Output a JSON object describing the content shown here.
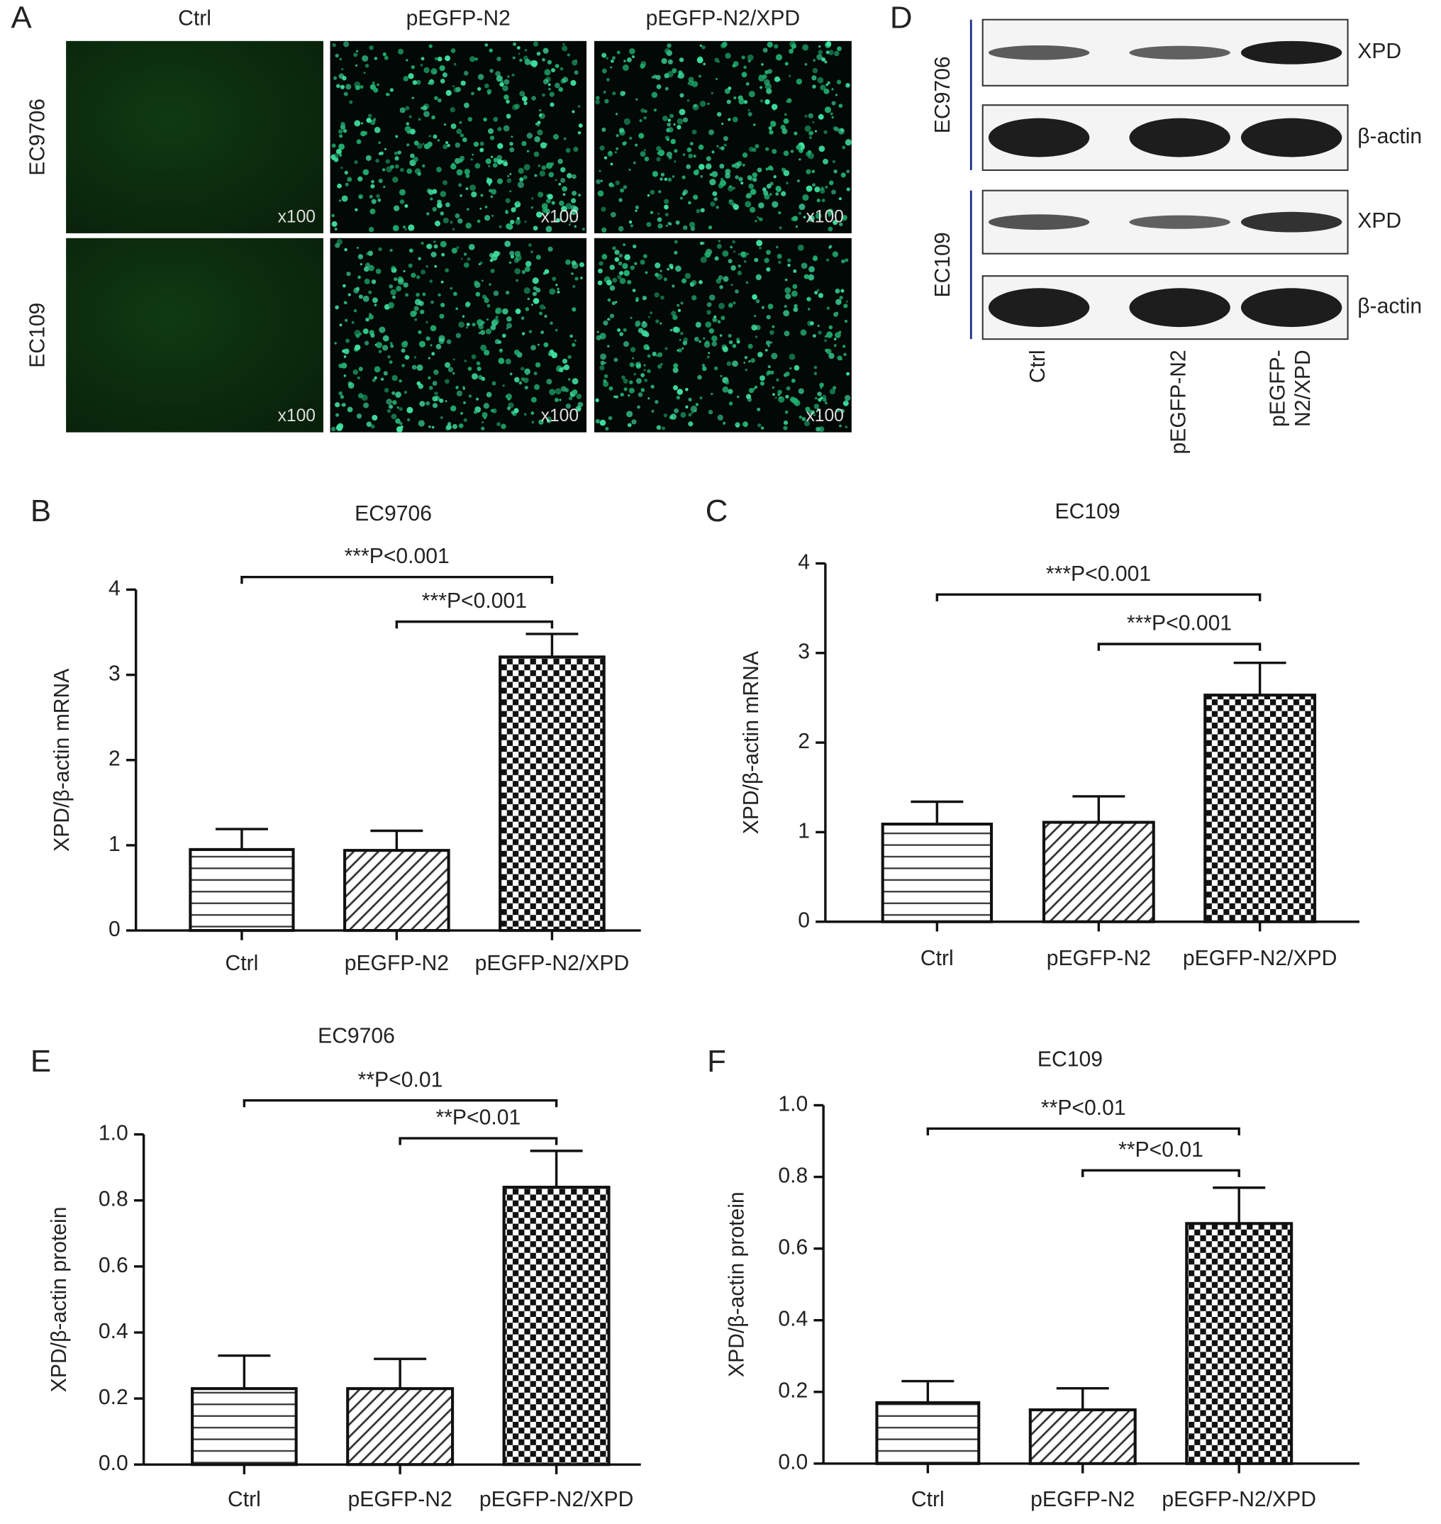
{
  "panel_labels": [
    "A",
    "B",
    "C",
    "D",
    "E",
    "F"
  ],
  "microscopy": {
    "columns": [
      "Ctrl",
      "pEGFP-N2",
      "pEGFP-N2/XPD"
    ],
    "rows": [
      "EC9706",
      "EC109"
    ],
    "magnification": "x100"
  },
  "western_blot": {
    "groups": [
      "EC9706",
      "EC109"
    ],
    "bands": [
      "XPD",
      "β-actin"
    ],
    "lanes": [
      [
        "Ctrl"
      ],
      [
        "pEGFP-N2"
      ],
      [
        "pEGFP-",
        "N2/XPD"
      ]
    ]
  },
  "chart_data": [
    {
      "type": "bar",
      "title": "EC9706",
      "ylabel": "XPD/β-actin mRNA",
      "categories": [
        "Ctrl",
        "pEGFP-N2",
        "pEGFP-N2/XPD"
      ],
      "values": [
        0.95,
        0.94,
        3.21
      ],
      "errors": [
        0.24,
        0.23,
        0.27
      ],
      "patterns": [
        "horizontal",
        "diagonal",
        "checker"
      ],
      "ylim": [
        0,
        4
      ],
      "yticks": [
        0,
        1,
        2,
        3,
        4
      ],
      "significance": [
        {
          "label": "***P<0.001",
          "pair": [
            "Ctrl",
            "pEGFP-N2/XPD"
          ]
        },
        {
          "label": "***P<0.001",
          "pair": [
            "pEGFP-N2",
            "pEGFP-N2/XPD"
          ]
        }
      ]
    },
    {
      "type": "bar",
      "title": "EC109",
      "ylabel": "XPD/β-actin mRNA",
      "categories": [
        "Ctrl",
        "pEGFP-N2",
        "pEGFP-N2/XPD"
      ],
      "values": [
        1.09,
        1.11,
        2.53
      ],
      "errors": [
        0.25,
        0.29,
        0.36
      ],
      "patterns": [
        "horizontal",
        "diagonal",
        "checker"
      ],
      "ylim": [
        0,
        4
      ],
      "yticks": [
        0,
        1,
        2,
        3,
        4
      ],
      "significance": [
        {
          "label": "***P<0.001",
          "pair": [
            "Ctrl",
            "pEGFP-N2/XPD"
          ]
        },
        {
          "label": "***P<0.001",
          "pair": [
            "pEGFP-N2",
            "pEGFP-N2/XPD"
          ]
        }
      ]
    },
    {
      "type": "bar",
      "title": "EC9706",
      "ylabel": "XPD/β-actin protein",
      "categories": [
        "Ctrl",
        "pEGFP-N2",
        "pEGFP-N2/XPD"
      ],
      "values": [
        0.23,
        0.23,
        0.84
      ],
      "errors": [
        0.1,
        0.09,
        0.11
      ],
      "patterns": [
        "horizontal",
        "diagonal",
        "checker"
      ],
      "ylim": [
        0,
        1
      ],
      "yticks": [
        {
          "value": 0,
          "label": "0.0"
        },
        {
          "value": 0.2,
          "label": "0.2"
        },
        {
          "value": 0.4,
          "label": "0.4"
        },
        {
          "value": 0.6,
          "label": "0.6"
        },
        {
          "value": 0.8,
          "label": "0.8"
        },
        {
          "value": 1,
          "label": "1.0"
        }
      ],
      "significance": [
        {
          "label": "**P<0.01",
          "pair": [
            "Ctrl",
            "pEGFP-N2/XPD"
          ]
        },
        {
          "label": "**P<0.01",
          "pair": [
            "pEGFP-N2",
            "pEGFP-N2/XPD"
          ]
        }
      ]
    },
    {
      "type": "bar",
      "title": "EC109",
      "ylabel": "XPD/β-actin protein",
      "categories": [
        "Ctrl",
        "pEGFP-N2",
        "pEGFP-N2/XPD"
      ],
      "values": [
        0.17,
        0.15,
        0.67
      ],
      "errors": [
        0.06,
        0.06,
        0.1
      ],
      "patterns": [
        "horizontal",
        "diagonal",
        "checker"
      ],
      "ylim": [
        0,
        1
      ],
      "yticks": [
        {
          "value": 0,
          "label": "0.0"
        },
        {
          "value": 0.2,
          "label": "0.2"
        },
        {
          "value": 0.4,
          "label": "0.4"
        },
        {
          "value": 0.6,
          "label": "0.6"
        },
        {
          "value": 0.8,
          "label": "0.8"
        },
        {
          "value": 1,
          "label": "1.0"
        }
      ],
      "significance": [
        {
          "label": "**P<0.01",
          "pair": [
            "Ctrl",
            "pEGFP-N2/XPD"
          ]
        },
        {
          "label": "**P<0.01",
          "pair": [
            "pEGFP-N2",
            "pEGFP-N2/XPD"
          ]
        }
      ]
    }
  ]
}
